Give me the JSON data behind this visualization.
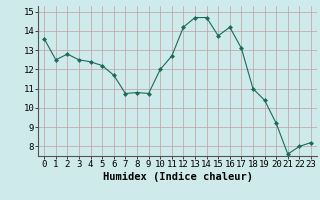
{
  "x": [
    0,
    1,
    2,
    3,
    4,
    5,
    6,
    7,
    8,
    9,
    10,
    11,
    12,
    13,
    14,
    15,
    16,
    17,
    18,
    19,
    20,
    21,
    22,
    23
  ],
  "y": [
    13.6,
    12.5,
    12.8,
    12.5,
    12.4,
    12.2,
    11.7,
    10.75,
    10.8,
    10.75,
    12.0,
    12.7,
    14.2,
    14.7,
    14.7,
    13.75,
    14.2,
    13.1,
    11.0,
    10.4,
    9.2,
    7.6,
    8.0,
    8.2
  ],
  "line_color": "#1a6b5a",
  "marker": "D",
  "marker_size": 2,
  "bg_color": "#ceeaea",
  "grid_color": "#c0a0a0",
  "xlabel": "Humidex (Indice chaleur)",
  "ylim": [
    7.5,
    15.3
  ],
  "xlim": [
    -0.5,
    23.5
  ],
  "yticks": [
    8,
    9,
    10,
    11,
    12,
    13,
    14,
    15
  ],
  "xticks": [
    0,
    1,
    2,
    3,
    4,
    5,
    6,
    7,
    8,
    9,
    10,
    11,
    12,
    13,
    14,
    15,
    16,
    17,
    18,
    19,
    20,
    21,
    22,
    23
  ],
  "xlabel_fontsize": 7.5,
  "tick_fontsize": 6.5
}
